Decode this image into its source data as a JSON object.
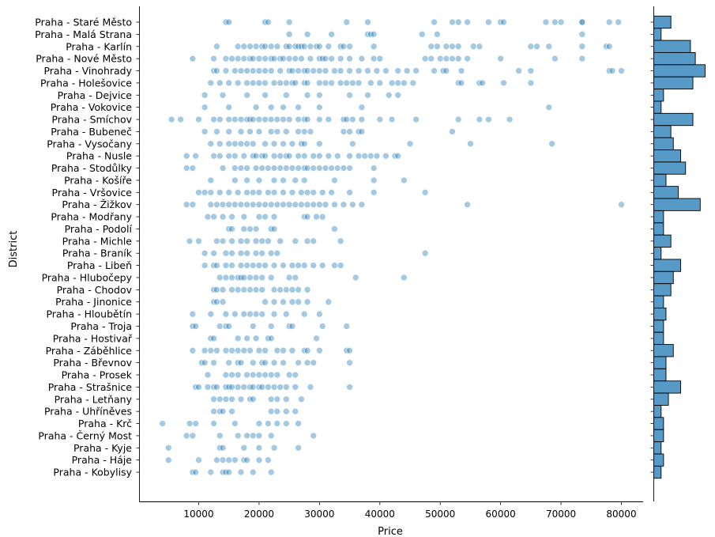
{
  "chart_data": [
    {
      "type": "scatter",
      "title": "",
      "xlabel": "Price",
      "ylabel": "District",
      "xlim": [
        0,
        84000
      ],
      "xticks": [
        10000,
        20000,
        30000,
        40000,
        50000,
        60000,
        70000,
        80000
      ],
      "xtick_labels": [
        "10000",
        "20000",
        "30000",
        "40000",
        "50000",
        "60000",
        "70000",
        "80000"
      ],
      "marker_color": "#1f77b4",
      "marker_alpha": 0.4,
      "grid": false,
      "legend": "none",
      "categories": [
        "Praha - Staré Město",
        "Praha - Malá Strana",
        "Praha - Karlín",
        "Praha - Nové Město",
        "Praha - Vinohrady",
        "Praha - Holešovice",
        "Praha - Dejvice",
        "Praha - Vokovice",
        "Praha - Smíchov",
        "Praha - Bubeneč",
        "Praha - Vysočany",
        "Praha - Nusle",
        "Praha - Stodůlky",
        "Praha - Košíře",
        "Praha - Vršovice",
        "Praha - Žižkov",
        "Praha - Modřany",
        "Praha - Podolí",
        "Praha - Michle",
        "Praha - Braník",
        "Praha - Libeň",
        "Praha - Hlubočepy",
        "Praha - Chodov",
        "Praha - Jinonice",
        "Praha - Hloubětín",
        "Praha - Troja",
        "Praha - Hostivař",
        "Praha - Záběhlice",
        "Praha - Břevnov",
        "Praha - Prosek",
        "Praha - Strašnice",
        "Praha - Letňany",
        "Praha - Uhříněves",
        "Praha - Krč",
        "Praha - Černý Most",
        "Praha - Kyje",
        "Praha - Háje",
        "Praha - Kobylisy"
      ],
      "points": [
        [
          14500,
          15000,
          21000,
          21500,
          25000,
          34500,
          38000,
          49000,
          52000,
          53000,
          54500,
          58000,
          60000,
          60500,
          67500,
          69000,
          70000,
          73500,
          73500,
          78000,
          79500
        ],
        [
          25000,
          28000,
          32000,
          38000,
          38500,
          39000,
          47000,
          49500,
          73500
        ],
        [
          13000,
          16500,
          17500,
          18500,
          19500,
          20500,
          21000,
          22000,
          23000,
          24500,
          25000,
          26000,
          26500,
          27000,
          27500,
          28500,
          29500,
          30000,
          31500,
          33500,
          34000,
          35000,
          39000,
          48500,
          49500,
          51000,
          52000,
          53000,
          55500,
          56500,
          65000,
          66000,
          68000,
          73500,
          77500,
          78000
        ],
        [
          9000,
          12500,
          14500,
          15500,
          16500,
          17500,
          18500,
          19000,
          20000,
          21000,
          22000,
          22500,
          23500,
          24000,
          25000,
          26000,
          27000,
          28500,
          30000,
          30500,
          31000,
          32000,
          33500,
          35000,
          37000,
          39000,
          40000,
          47500,
          48500,
          50000,
          51000,
          52000,
          53000,
          54500,
          60000,
          69000,
          73500
        ],
        [
          12500,
          13000,
          14500,
          16000,
          17000,
          18000,
          19000,
          20000,
          21000,
          22000,
          23500,
          25000,
          25500,
          26500,
          27500,
          28000,
          29000,
          30000,
          31000,
          32500,
          33500,
          35000,
          36500,
          38000,
          39500,
          41000,
          43000,
          44500,
          46000,
          49000,
          50500,
          51000,
          53500,
          63000,
          65000,
          78000,
          78500,
          80000
        ],
        [
          12000,
          13500,
          15000,
          16500,
          18000,
          19000,
          20000,
          21000,
          22500,
          23500,
          24500,
          25500,
          26000,
          27500,
          28000,
          30000,
          31000,
          32000,
          33500,
          34500,
          35500,
          36500,
          38500,
          40000,
          42000,
          43000,
          44000,
          45500,
          53000,
          53500,
          56500,
          57000,
          60500,
          65000
        ],
        [
          11000,
          14000,
          18000,
          21000,
          24500,
          28000,
          30000,
          35000,
          38000,
          41500,
          43000
        ],
        [
          11000,
          15000,
          19500,
          22000,
          24000,
          26500,
          30000,
          37000,
          68000
        ],
        [
          5500,
          7000,
          10000,
          12500,
          13500,
          15000,
          16000,
          17000,
          18000,
          18500,
          19000,
          20000,
          21000,
          22000,
          23000,
          24000,
          25000,
          26500,
          27500,
          28000,
          30000,
          31500,
          34000,
          34500,
          35500,
          37000,
          40000,
          42000,
          46000,
          53000,
          56500,
          58000,
          61500
        ],
        [
          11000,
          13000,
          15000,
          17000,
          18500,
          20000,
          22000,
          23000,
          24500,
          26500,
          27500,
          28500,
          34000,
          35000,
          36500,
          37000,
          52000
        ],
        [
          12000,
          13500,
          15000,
          16000,
          17000,
          18000,
          19000,
          21000,
          22500,
          24000,
          25500,
          27000,
          27500,
          30000,
          35500,
          45000,
          55000,
          68500
        ],
        [
          8000,
          9500,
          12500,
          13500,
          15000,
          16000,
          17500,
          19000,
          19500,
          20500,
          21000,
          22500,
          23500,
          24500,
          25000,
          26500,
          27500,
          29000,
          30000,
          31500,
          33000,
          35000,
          36500,
          37500,
          38500,
          39500,
          41000,
          42500,
          43000
        ],
        [
          8000,
          9000,
          14000,
          16000,
          17000,
          18000,
          19500,
          20500,
          21500,
          22500,
          23500,
          24500,
          25500,
          26500,
          27500,
          28000,
          29000,
          30000,
          31000,
          32000,
          33000,
          34000,
          35000,
          39000
        ],
        [
          12000,
          16000,
          18000,
          20000,
          22500,
          24000,
          26000,
          27500,
          32500,
          39000,
          44000
        ],
        [
          10000,
          11000,
          12000,
          13500,
          15000,
          16500,
          18000,
          19000,
          20000,
          21500,
          22500,
          24000,
          25500,
          27000,
          28000,
          29000,
          30500,
          32000,
          35000,
          39000,
          47500
        ],
        [
          8000,
          9000,
          12000,
          13000,
          14000,
          15000,
          16000,
          17000,
          18000,
          19000,
          20000,
          21000,
          22000,
          23000,
          24000,
          25000,
          26000,
          27000,
          28000,
          29000,
          30000,
          31000,
          32500,
          34000,
          35500,
          37000,
          54500,
          80000
        ],
        [
          11500,
          12500,
          14000,
          15500,
          17500,
          20000,
          21000,
          22500,
          27500,
          28000,
          29500,
          30500
        ],
        [
          15000,
          15500,
          17500,
          18500,
          19500,
          22000,
          22500,
          32500
        ],
        [
          8500,
          10000,
          13000,
          14000,
          15500,
          17000,
          18000,
          19500,
          20500,
          21500,
          23500,
          26000,
          28000,
          29000,
          33500
        ],
        [
          11000,
          12500,
          14500,
          15500,
          17000,
          18000,
          19500,
          20500,
          22000,
          23000,
          47500
        ],
        [
          11000,
          12500,
          13000,
          14500,
          15500,
          17000,
          18000,
          19000,
          20000,
          21000,
          22500,
          24000,
          25500,
          26500,
          27500,
          29000,
          30500,
          32500,
          33500
        ],
        [
          13500,
          14500,
          15500,
          16500,
          17000,
          17500,
          18500,
          19500,
          20500,
          22000,
          25000,
          26000,
          36000,
          44000
        ],
        [
          12500,
          13000,
          14000,
          15500,
          16500,
          17500,
          18500,
          19500,
          20500,
          22500,
          23500,
          24500,
          25500,
          26500,
          28000
        ],
        [
          12500,
          13000,
          14000,
          21000,
          22500,
          24000,
          25500,
          26500,
          28000,
          31500
        ],
        [
          9000,
          12000,
          14500,
          16000,
          17500,
          18500,
          19500,
          20500,
          22500,
          24500,
          27500,
          30000
        ],
        [
          9000,
          9500,
          13500,
          14500,
          15000,
          19000,
          22000,
          25000,
          25500,
          30500,
          34500
        ],
        [
          12000,
          12500,
          16500,
          18000,
          19500,
          21500,
          22000,
          29500
        ],
        [
          9000,
          11000,
          12000,
          13000,
          14500,
          15500,
          16500,
          17500,
          18500,
          20000,
          21000,
          23000,
          24000,
          25500,
          27500,
          28000,
          30000,
          34500,
          35000
        ],
        [
          10500,
          11000,
          12500,
          15000,
          16500,
          17000,
          19000,
          20500,
          21000,
          22500,
          24000,
          26500,
          28000,
          29000,
          35000
        ],
        [
          11500,
          14500,
          15500,
          16500,
          18000,
          19000,
          20000,
          21000,
          22000,
          23000,
          25000,
          26000
        ],
        [
          9500,
          10000,
          11500,
          12500,
          13000,
          14500,
          15000,
          15500,
          16500,
          17500,
          18500,
          19000,
          20000,
          20500,
          21500,
          22500,
          23500,
          24500,
          26000,
          28500,
          35000
        ],
        [
          12500,
          13500,
          14500,
          15500,
          17000,
          18500,
          19000,
          22000,
          23000,
          24500,
          27000
        ],
        [
          12500,
          13500,
          14000,
          15500,
          22000,
          23000,
          24500,
          26000
        ],
        [
          4000,
          8500,
          9500,
          12500,
          16000,
          20000,
          21500,
          23000,
          24500,
          26500
        ],
        [
          8000,
          9000,
          13500,
          16500,
          18000,
          19000,
          20000,
          22000,
          29000
        ],
        [
          5000,
          13500,
          14000,
          17500,
          20000,
          22500,
          26500
        ],
        [
          5000,
          10000,
          13000,
          14000,
          15000,
          16000,
          17500,
          18000,
          20000,
          21500
        ],
        [
          9000,
          9500,
          12000,
          14000,
          14500,
          15000,
          17000,
          19000,
          22000
        ]
      ],
      "counts": [
        7,
        3,
        15,
        17,
        21,
        16,
        4,
        3,
        16,
        7,
        8,
        11,
        13,
        5,
        10,
        19,
        4,
        4,
        7,
        3,
        11,
        8,
        7,
        4,
        5,
        4,
        4,
        8,
        5,
        5,
        11,
        6,
        3,
        4,
        4,
        3,
        4,
        3
      ]
    },
    {
      "type": "bar",
      "orientation": "horizontal",
      "title": "",
      "xlabel": "",
      "ylabel": "",
      "bar_color": "#1f77b4",
      "bar_alpha": 0.75,
      "edge_color": "#000000",
      "xlim": [
        0,
        22
      ],
      "note_values_from": "counts of chart 0"
    }
  ]
}
